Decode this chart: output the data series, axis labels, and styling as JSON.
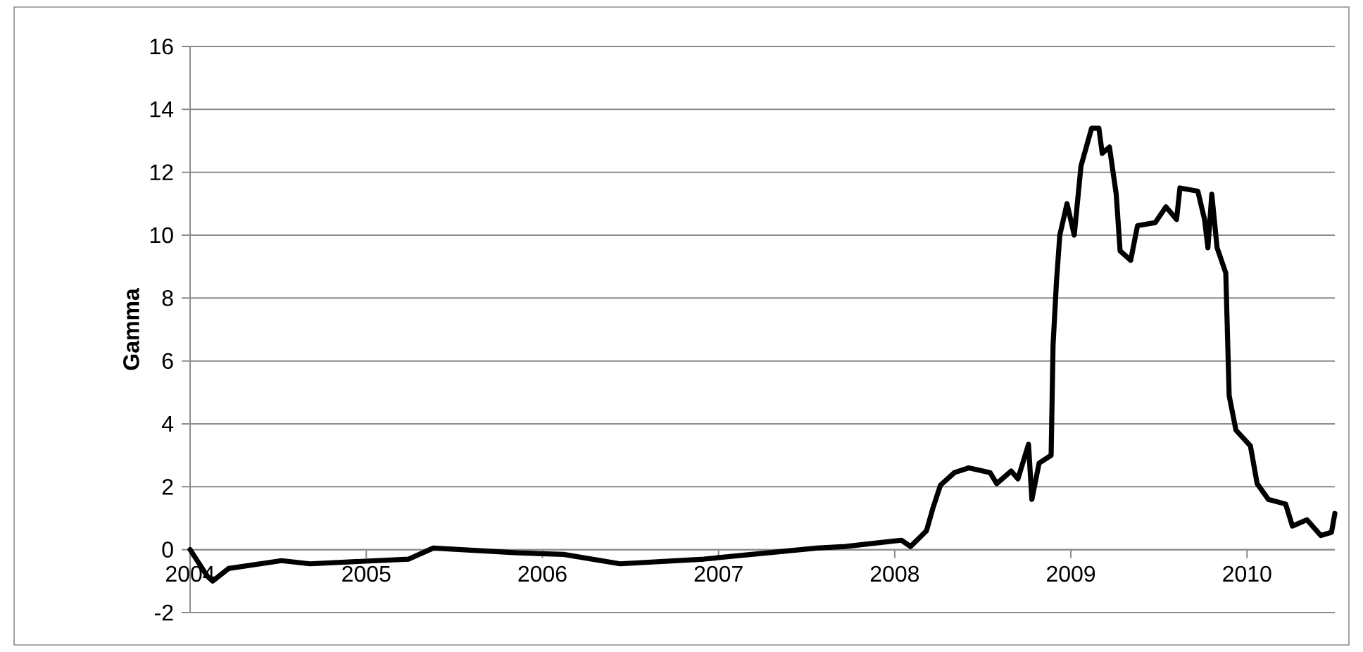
{
  "chart_data": {
    "type": "line",
    "ylabel": "Gamma",
    "x": [
      "2004-01-01",
      "2004-02-06",
      "2004-02-17",
      "2004-03-21",
      "2004-07-09",
      "2004-09-06",
      "2005-03-30",
      "2005-05-20",
      "2005-11-10",
      "2006-02-14",
      "2006-06-11",
      "2006-12-02",
      "2007-07-24",
      "2007-09-21",
      "2008-01-15",
      "2008-02-03",
      "2008-03-07",
      "2008-03-21",
      "2008-04-05",
      "2008-05-04",
      "2008-06-03",
      "2008-07-17",
      "2008-07-31",
      "2008-08-30",
      "2008-09-13",
      "2008-10-05",
      "2008-10-12",
      "2008-10-27",
      "2008-11-21",
      "2008-11-25",
      "2008-12-02",
      "2008-12-09",
      "2008-12-24",
      "2009-01-08",
      "2009-01-22",
      "2009-02-13",
      "2009-02-28",
      "2009-03-07",
      "2009-03-22",
      "2009-04-05",
      "2009-04-13",
      "2009-05-05",
      "2009-05-19",
      "2009-06-25",
      "2009-07-17",
      "2009-08-08",
      "2009-08-15",
      "2009-09-21",
      "2009-10-05",
      "2009-10-12",
      "2009-10-20",
      "2009-10-31",
      "2009-11-18",
      "2009-11-25",
      "2009-12-09",
      "2010-01-08",
      "2010-01-22",
      "2010-02-14",
      "2010-03-22",
      "2010-04-05",
      "2010-05-05",
      "2010-06-03",
      "2010-06-25",
      "2010-07-02"
    ],
    "series": [
      {
        "color": "#000000",
        "values": [
          0,
          -0.85,
          -1.0,
          -0.6,
          -0.35,
          -0.45,
          -0.3,
          0.05,
          -0.1,
          -0.15,
          -0.45,
          -0.3,
          0.05,
          0.1,
          0.3,
          0.1,
          0.6,
          1.35,
          2.05,
          2.45,
          2.6,
          2.45,
          2.1,
          2.5,
          2.25,
          3.35,
          1.6,
          2.75,
          3.0,
          6.5,
          8.5,
          10,
          11,
          10,
          12.2,
          13.4,
          13.4,
          12.6,
          12.8,
          11.3,
          9.5,
          9.2,
          10.3,
          10.4,
          10.9,
          10.5,
          11.5,
          11.4,
          10.5,
          9.6,
          11.3,
          9.6,
          8.8,
          4.9,
          3.8,
          3.3,
          2.1,
          1.6,
          1.45,
          0.75,
          0.95,
          0.45,
          0.55,
          1.15
        ]
      }
    ],
    "xlim": [
      "2004-01-01",
      "2010-07-02"
    ],
    "xticks": [
      "2004",
      "2005",
      "2006",
      "2007",
      "2008",
      "2009",
      "2010"
    ],
    "ylim": [
      -2,
      16
    ],
    "yticks": [
      -2,
      0,
      2,
      4,
      6,
      8,
      10,
      12,
      14,
      16
    ],
    "grid": "y",
    "marker": "none",
    "line_style": "solid"
  }
}
